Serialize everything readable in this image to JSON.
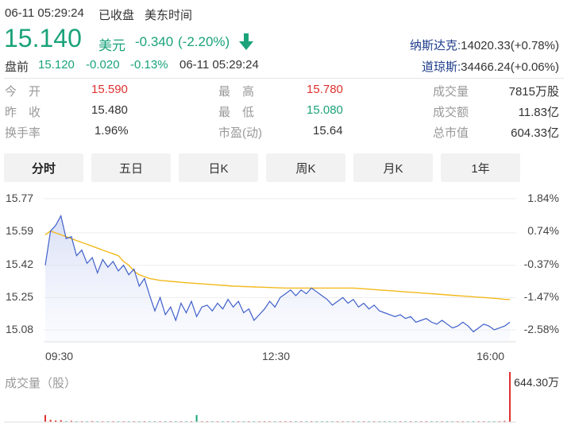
{
  "header": {
    "datetime": "06-11 05:29:24",
    "status": "已收盘",
    "timezone": "美东时间"
  },
  "quote": {
    "price": "15.140",
    "currency": "美元",
    "change": "-0.340",
    "change_pct": "(-2.20%)",
    "arrow_icon": "down-arrow-icon"
  },
  "premarket": {
    "label": "盘前",
    "price": "15.120",
    "change": "-0.020",
    "change_pct": "-0.13%",
    "datetime": "06-11 05:29:24"
  },
  "indices": [
    {
      "name": "纳斯达克:",
      "value": "14020.33(+0.78%)"
    },
    {
      "name": "道琼斯:",
      "value": "34466.24(+0.06%)"
    }
  ],
  "stats": {
    "open_label": "今　开",
    "open": "15.590",
    "prev_label": "昨　收",
    "prev": "15.480",
    "turnover_label": "换手率",
    "turnover": "1.96%",
    "high_label": "最　高",
    "high": "15.780",
    "low_label": "最　低",
    "low": "15.080",
    "pe_label": "市盈(动)",
    "pe": "15.64",
    "volume_label": "成交量",
    "volume": "7815万股",
    "amount_label": "成交额",
    "amount": "11.83亿",
    "mcap_label": "总市值",
    "mcap": "604.33亿"
  },
  "tabs": [
    "分时",
    "五日",
    "日K",
    "周K",
    "月K",
    "1年"
  ],
  "active_tab": 0,
  "colors": {
    "price_line": "#3f5fc9",
    "avg_line": "#f2b81d",
    "up": "#e0312f",
    "down": "#1aa37a"
  },
  "chart_data": {
    "type": "line",
    "y_left_ticks": [
      "15.77",
      "15.59",
      "15.42",
      "15.25",
      "15.08"
    ],
    "y_right_ticks": [
      "1.84%",
      "0.74%",
      "-0.37%",
      "-1.47%",
      "-2.58%"
    ],
    "x_ticks": [
      "09:30",
      "12:30",
      "16:00"
    ],
    "xlim": [
      "09:30",
      "16:00"
    ],
    "ylim": [
      15.08,
      15.77
    ],
    "series": [
      {
        "key": "price",
        "values": [
          15.42,
          15.6,
          15.63,
          15.68,
          15.56,
          15.57,
          15.47,
          15.5,
          15.43,
          15.46,
          15.38,
          15.45,
          15.41,
          15.44,
          15.39,
          15.42,
          15.37,
          15.4,
          15.31,
          15.35,
          15.26,
          15.18,
          15.25,
          15.16,
          15.2,
          15.13,
          15.22,
          15.17,
          15.23,
          15.15,
          15.2,
          15.21,
          15.18,
          15.22,
          15.19,
          15.24,
          15.2,
          15.23,
          15.17,
          15.19,
          15.13,
          15.16,
          15.19,
          15.23,
          15.2,
          15.25,
          15.27,
          15.29,
          15.26,
          15.29,
          15.27,
          15.3,
          15.28,
          15.26,
          15.24,
          15.21,
          15.23,
          15.25,
          15.22,
          15.24,
          15.2,
          15.22,
          15.19,
          15.21,
          15.18,
          15.17,
          15.16,
          15.15,
          15.16,
          15.14,
          15.15,
          15.12,
          15.13,
          15.14,
          15.12,
          15.11,
          15.13,
          15.11,
          15.09,
          15.1,
          15.12,
          15.1,
          15.07,
          15.09,
          15.11,
          15.1,
          15.08,
          15.09,
          15.1,
          15.12
        ]
      },
      {
        "key": "avg",
        "values": [
          15.58,
          15.6,
          15.59,
          15.58,
          15.57,
          15.56,
          15.55,
          15.54,
          15.53,
          15.52,
          15.51,
          15.5,
          15.49,
          15.48,
          15.47,
          15.44,
          15.42,
          15.39,
          15.37,
          15.36,
          15.35,
          15.345,
          15.34,
          15.338,
          15.335,
          15.333,
          15.33,
          15.328,
          15.326,
          15.324,
          15.322,
          15.32,
          15.318,
          15.316,
          15.314,
          15.312,
          15.31,
          15.309,
          15.308,
          15.307,
          15.306,
          15.305,
          15.304,
          15.303,
          15.302,
          15.301,
          15.3,
          15.3,
          15.3,
          15.3,
          15.3,
          15.3,
          15.3,
          15.3,
          15.3,
          15.3,
          15.3,
          15.3,
          15.3,
          15.3,
          15.298,
          15.296,
          15.294,
          15.292,
          15.29,
          15.288,
          15.286,
          15.284,
          15.282,
          15.28,
          15.278,
          15.276,
          15.274,
          15.272,
          15.27,
          15.268,
          15.266,
          15.264,
          15.262,
          15.26,
          15.258,
          15.256,
          15.254,
          15.252,
          15.25,
          15.248,
          15.246,
          15.244,
          15.24,
          15.24
        ]
      }
    ],
    "volume": {
      "label": "成交量（股）",
      "max_label": "644.30万",
      "max": 6443000,
      "values": [
        900000,
        300000,
        200000,
        250000,
        120000,
        150000,
        100000,
        90000,
        80000,
        120000,
        70000,
        60000,
        90000,
        80000,
        60000,
        70000,
        50000,
        80000,
        60000,
        70000,
        50000,
        60000,
        50000,
        40000,
        60000,
        50000,
        40000,
        50000,
        60000,
        900000,
        60000,
        50000,
        40000,
        50000,
        60000,
        40000,
        50000,
        40000,
        60000,
        50000,
        40000,
        50000,
        60000,
        40000,
        50000,
        40000,
        50000,
        60000,
        40000,
        50000,
        40000,
        60000,
        50000,
        40000,
        50000,
        40000,
        60000,
        50000,
        40000,
        50000,
        40000,
        60000,
        50000,
        40000,
        50000,
        40000,
        60000,
        50000,
        40000,
        50000,
        40000,
        60000,
        50000,
        40000,
        50000,
        40000,
        60000,
        50000,
        40000,
        50000,
        40000,
        60000,
        50000,
        40000,
        50000,
        40000,
        60000,
        80000,
        150000,
        6443000
      ]
    }
  }
}
